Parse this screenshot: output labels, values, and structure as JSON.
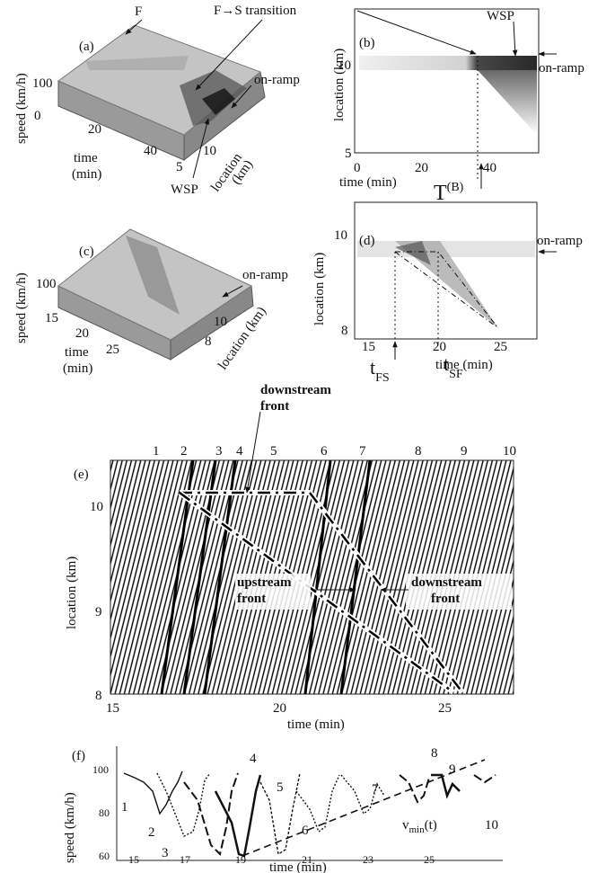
{
  "panel_a": {
    "label": "(a)",
    "free_flow": "F",
    "transition": "F→S transition",
    "y_axis": "speed (km/h)",
    "y_ticks": [
      100
    ],
    "time_ticks": [
      0,
      20,
      40
    ],
    "time_label": [
      "time",
      "(min)"
    ],
    "location_ticks": [
      5,
      10
    ],
    "location_label": [
      "location",
      "(km)"
    ],
    "wsp": "WSP",
    "on_ramp": "on-ramp"
  },
  "panel_b": {
    "label": "(b)",
    "y_axis": "location (km)",
    "y_ticks": [
      10,
      5
    ],
    "x_ticks": [
      0,
      20,
      40
    ],
    "x_axis": "time (min)",
    "t_symbol": "T",
    "t_superscript": "(B)",
    "wsp": "WSP",
    "on_ramp": "on-ramp"
  },
  "panel_c": {
    "label": "(c)",
    "y_axis": "speed (km/h)",
    "y_ticks": [
      100
    ],
    "time_ticks": [
      15,
      20,
      25
    ],
    "time_label": [
      "time",
      "(min)"
    ],
    "location_ticks": [
      8,
      10
    ],
    "location_label": "location (km)",
    "on_ramp": "on-ramp"
  },
  "panel_d": {
    "label": "(d)",
    "y_axis": "location (km)",
    "y_ticks": [
      10,
      8
    ],
    "x_ticks": [
      15,
      20,
      25
    ],
    "x_axis": "time (min)",
    "t_fs": [
      "t",
      "FS"
    ],
    "t_sf": [
      "t",
      "SF"
    ],
    "on_ramp": "on-ramp"
  },
  "panel_e": {
    "label": "(e)",
    "top_label": [
      "downstream",
      "front"
    ],
    "vehicle_numbers": [
      1,
      2,
      3,
      4,
      5,
      6,
      7,
      8,
      9,
      10
    ],
    "y_axis": "location (km)",
    "y_ticks": [
      10,
      9,
      8
    ],
    "x_ticks": [
      15,
      20,
      25
    ],
    "x_axis": "time (min)",
    "upstream_label": [
      "upstream",
      "front"
    ],
    "downstream_label": [
      "downstream",
      "front"
    ]
  },
  "panel_f": {
    "label": "(f)",
    "y_axis": "speed (km/h)",
    "y_ticks": [
      100,
      80,
      60
    ],
    "x_ticks": [
      15,
      17,
      19,
      21,
      23,
      25
    ],
    "x_axis": "time (min)",
    "vehicle_numbers": [
      1,
      2,
      3,
      4,
      5,
      6,
      7,
      8,
      9,
      10
    ],
    "vmin_label": [
      "v",
      "min",
      "(t)"
    ]
  }
}
